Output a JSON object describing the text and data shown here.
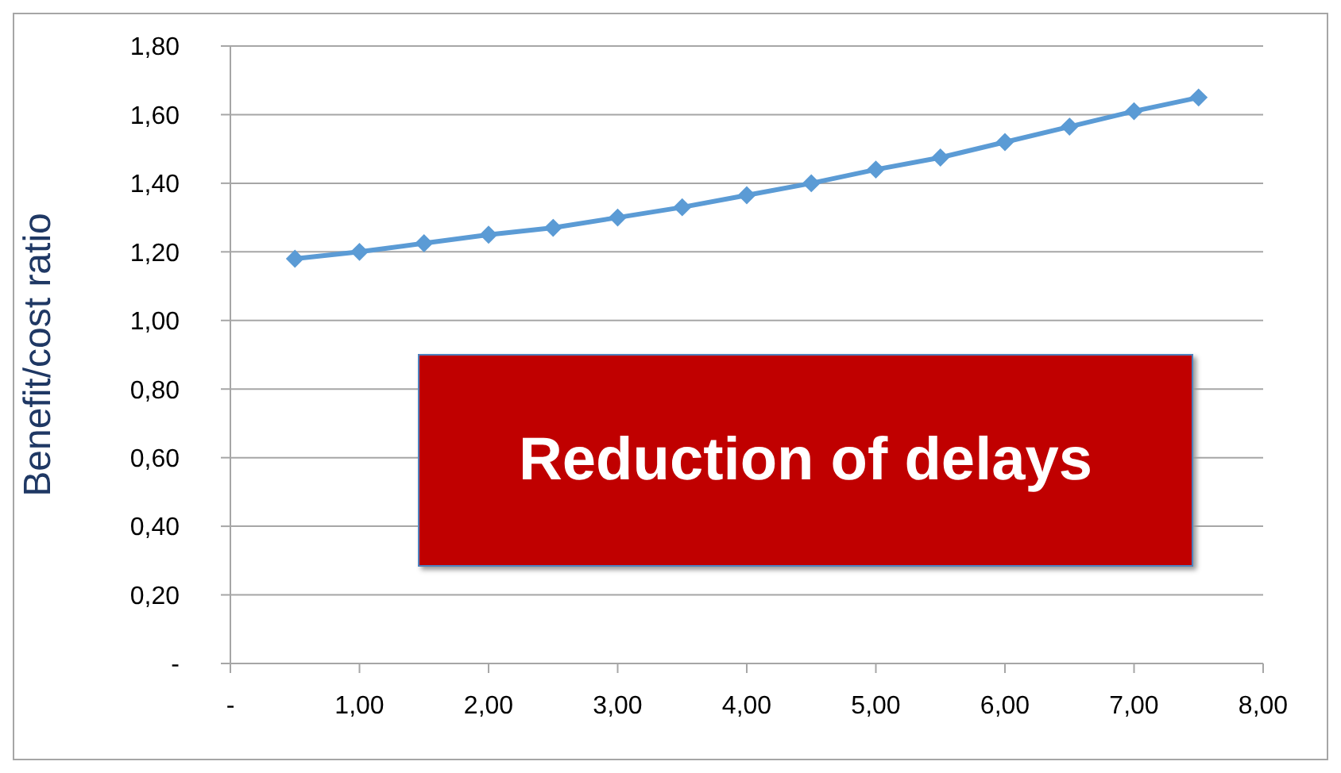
{
  "chart_data": {
    "type": "line",
    "ylabel": "Benefit/cost ratio",
    "annotations": [
      "Reduction of delays"
    ],
    "x": [
      0.5,
      1,
      1.5,
      2,
      2.5,
      3,
      3.5,
      4,
      4.5,
      5,
      5.5,
      6,
      6.5,
      7,
      7.5
    ],
    "series": [
      {
        "color": "#5b9bd5",
        "values": [
          1.18,
          1.2,
          1.225,
          1.25,
          1.27,
          1.3,
          1.33,
          1.365,
          1.4,
          1.44,
          1.475,
          1.52,
          1.565,
          1.61,
          1.65
        ]
      }
    ],
    "xlim": [
      0,
      8
    ],
    "xticks": [
      {
        "value": 0,
        "label": "-"
      },
      {
        "value": 1,
        "label": "1,00"
      },
      {
        "value": 2,
        "label": "2,00"
      },
      {
        "value": 3,
        "label": "3,00"
      },
      {
        "value": 4,
        "label": "4,00"
      },
      {
        "value": 5,
        "label": "5,00"
      },
      {
        "value": 6,
        "label": "6,00"
      },
      {
        "value": 7,
        "label": "7,00"
      },
      {
        "value": 8,
        "label": "8,00"
      }
    ],
    "ylim": [
      0,
      1.8
    ],
    "yticks": [
      {
        "value": 0,
        "label": "-"
      },
      {
        "value": 0.2,
        "label": "0,20"
      },
      {
        "value": 0.4,
        "label": "0,40"
      },
      {
        "value": 0.6,
        "label": "0,60"
      },
      {
        "value": 0.8,
        "label": "0,80"
      },
      {
        "value": 1,
        "label": "1,00"
      },
      {
        "value": 1.2,
        "label": "1,20"
      },
      {
        "value": 1.4,
        "label": "1,40"
      },
      {
        "value": 1.6,
        "label": "1,60"
      },
      {
        "value": 1.8,
        "label": "1,80"
      }
    ],
    "grid": "y",
    "marker": "diamond",
    "line_style": "solid",
    "legend": false
  }
}
